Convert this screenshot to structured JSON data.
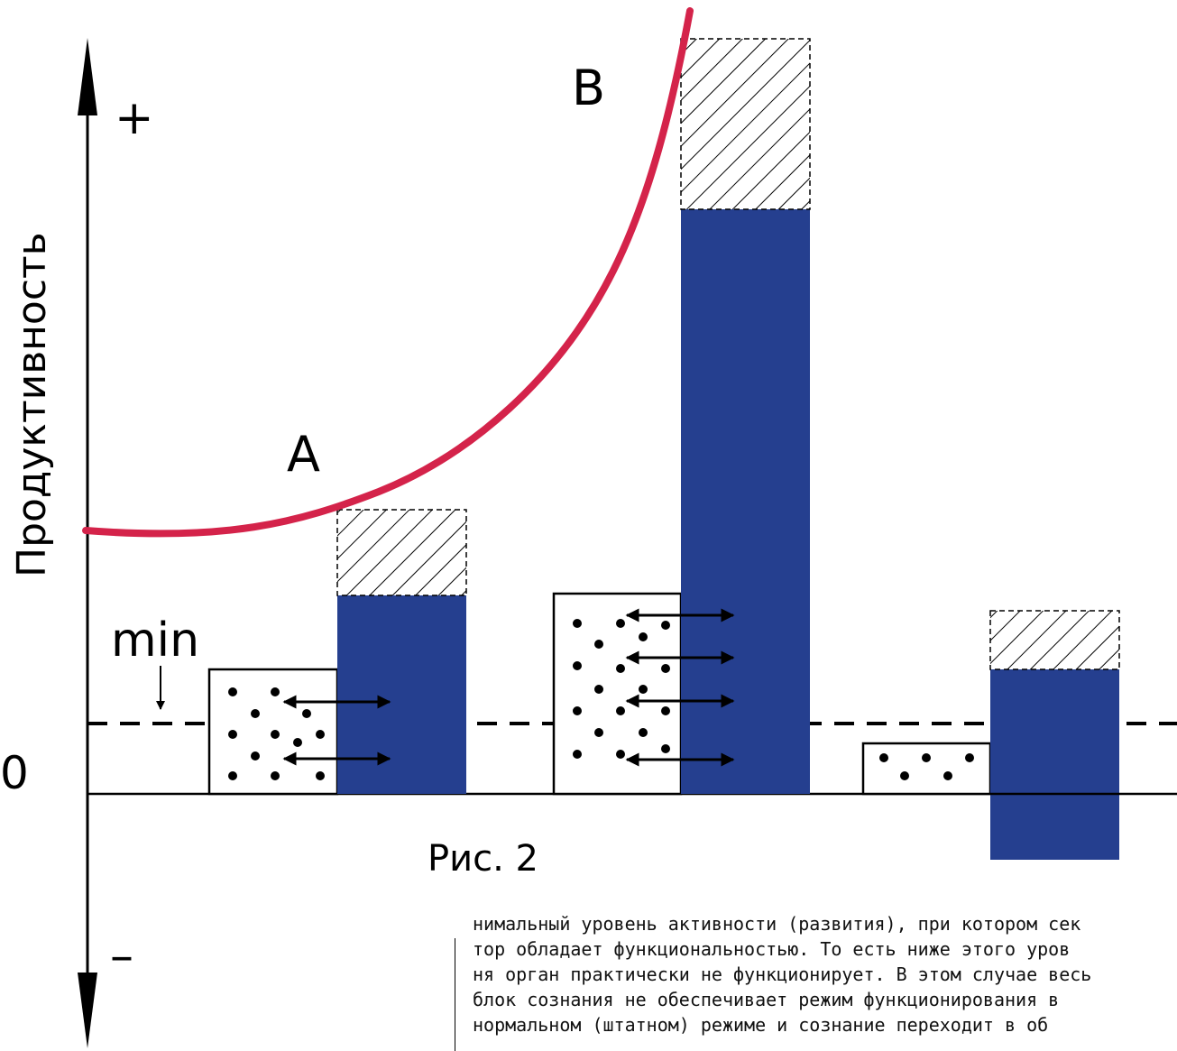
{
  "figure": {
    "caption": "Рис. 2",
    "y_axis_label": "Продуктивность",
    "plus_label": "+",
    "minus_label": "–",
    "zero_label": "0",
    "min_label": "min",
    "curve_label_a": "A",
    "curve_label_b": "B"
  },
  "colors": {
    "curve": "#d4234a",
    "bar_fill": "#253f8f",
    "axis": "#000000"
  },
  "groups": [
    {
      "dots_box_level": 1.0,
      "bar_level": 1.55,
      "hatch_top_level": 2.3,
      "arrows": 2
    },
    {
      "dots_box_level": 1.6,
      "bar_level": 4.7,
      "hatch_top_level": 6.05,
      "arrows": 4
    },
    {
      "dots_box_level": 0.4,
      "bar_level": 1.0,
      "hatch_top_level": 1.47,
      "bar_bottom_level": -0.57,
      "arrows": 0
    }
  ],
  "min_level": 0.56,
  "body_text": {
    "lines": [
      "нимальный уровень активности (развития), при котором сек",
      "тор обладает функциональностью. То есть ниже этого уров",
      "ня орган практически не функционирует. В этом случае весь",
      "блок сознания не обеспечивает режим функционирования в",
      "нормальном (штатном) режиме и сознание переходит в об"
    ]
  }
}
